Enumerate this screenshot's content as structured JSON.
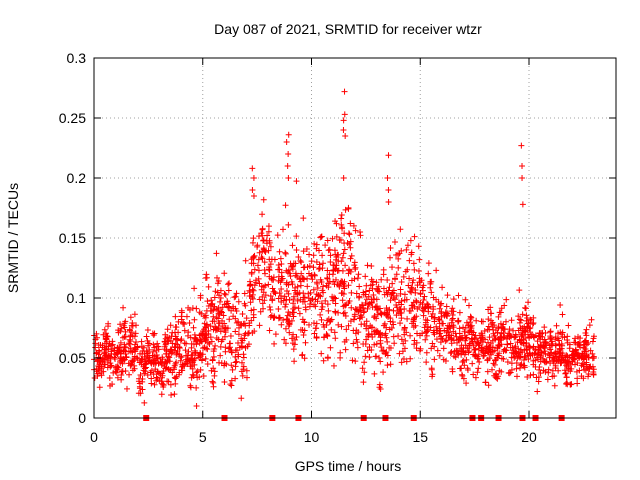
{
  "chart_data": {
    "type": "scatter",
    "title": "Day 087 of 2021, SRMTID for receiver wtzr",
    "xlabel": "GPS time / hours",
    "ylabel": "SRMTID / TECUs",
    "xlim": [
      0,
      24
    ],
    "ylim": [
      0,
      0.3
    ],
    "xticks": [
      0,
      5,
      10,
      15,
      20
    ],
    "xtick_labels": [
      "0",
      "5",
      "10",
      "15",
      "20"
    ],
    "yticks": [
      0,
      0.05,
      0.1,
      0.15,
      0.2,
      0.25,
      0.3
    ],
    "ytick_labels": [
      "0",
      "0.05",
      "0.1",
      "0.15",
      "0.2",
      "0.25",
      "0.3"
    ],
    "grid": true,
    "marker": "plus",
    "color": "#ff0000",
    "data_gaps_x": [
      2.4,
      6.0,
      8.2,
      9.4,
      12.4,
      13.4,
      14.7,
      17.4,
      17.8,
      18.6,
      19.7,
      20.3,
      21.5
    ],
    "envelope_hours": [
      0,
      1,
      2,
      3,
      4,
      5,
      6,
      6.8,
      7.5,
      8.5,
      9.5,
      10.5,
      11.5,
      12.5,
      13.5,
      14.5,
      15.5,
      16.5,
      17.5,
      18.5,
      19.5,
      20.5,
      21.5,
      22.5,
      23
    ],
    "envelope_median": [
      0.05,
      0.055,
      0.05,
      0.045,
      0.055,
      0.07,
      0.08,
      0.06,
      0.13,
      0.11,
      0.1,
      0.11,
      0.115,
      0.08,
      0.09,
      0.1,
      0.08,
      0.065,
      0.06,
      0.06,
      0.065,
      0.055,
      0.05,
      0.05,
      0.05
    ],
    "envelope_spread": [
      0.012,
      0.013,
      0.015,
      0.015,
      0.018,
      0.022,
      0.025,
      0.02,
      0.03,
      0.03,
      0.03,
      0.028,
      0.035,
      0.025,
      0.025,
      0.03,
      0.022,
      0.015,
      0.015,
      0.017,
      0.015,
      0.013,
      0.013,
      0.013,
      0.013
    ],
    "point_count": 2300,
    "spikes": [
      {
        "x": 7.3,
        "values": [
          0.19,
          0.2,
          0.208,
          0.185
        ]
      },
      {
        "x": 8.9,
        "values": [
          0.236,
          0.23,
          0.22,
          0.21,
          0.2
        ]
      },
      {
        "x": 11.5,
        "values": [
          0.272,
          0.253,
          0.248,
          0.24,
          0.235,
          0.2
        ]
      },
      {
        "x": 13.5,
        "values": [
          0.219,
          0.2,
          0.19,
          0.18
        ]
      },
      {
        "x": 19.7,
        "values": [
          0.227,
          0.21,
          0.2,
          0.178
        ]
      }
    ]
  }
}
